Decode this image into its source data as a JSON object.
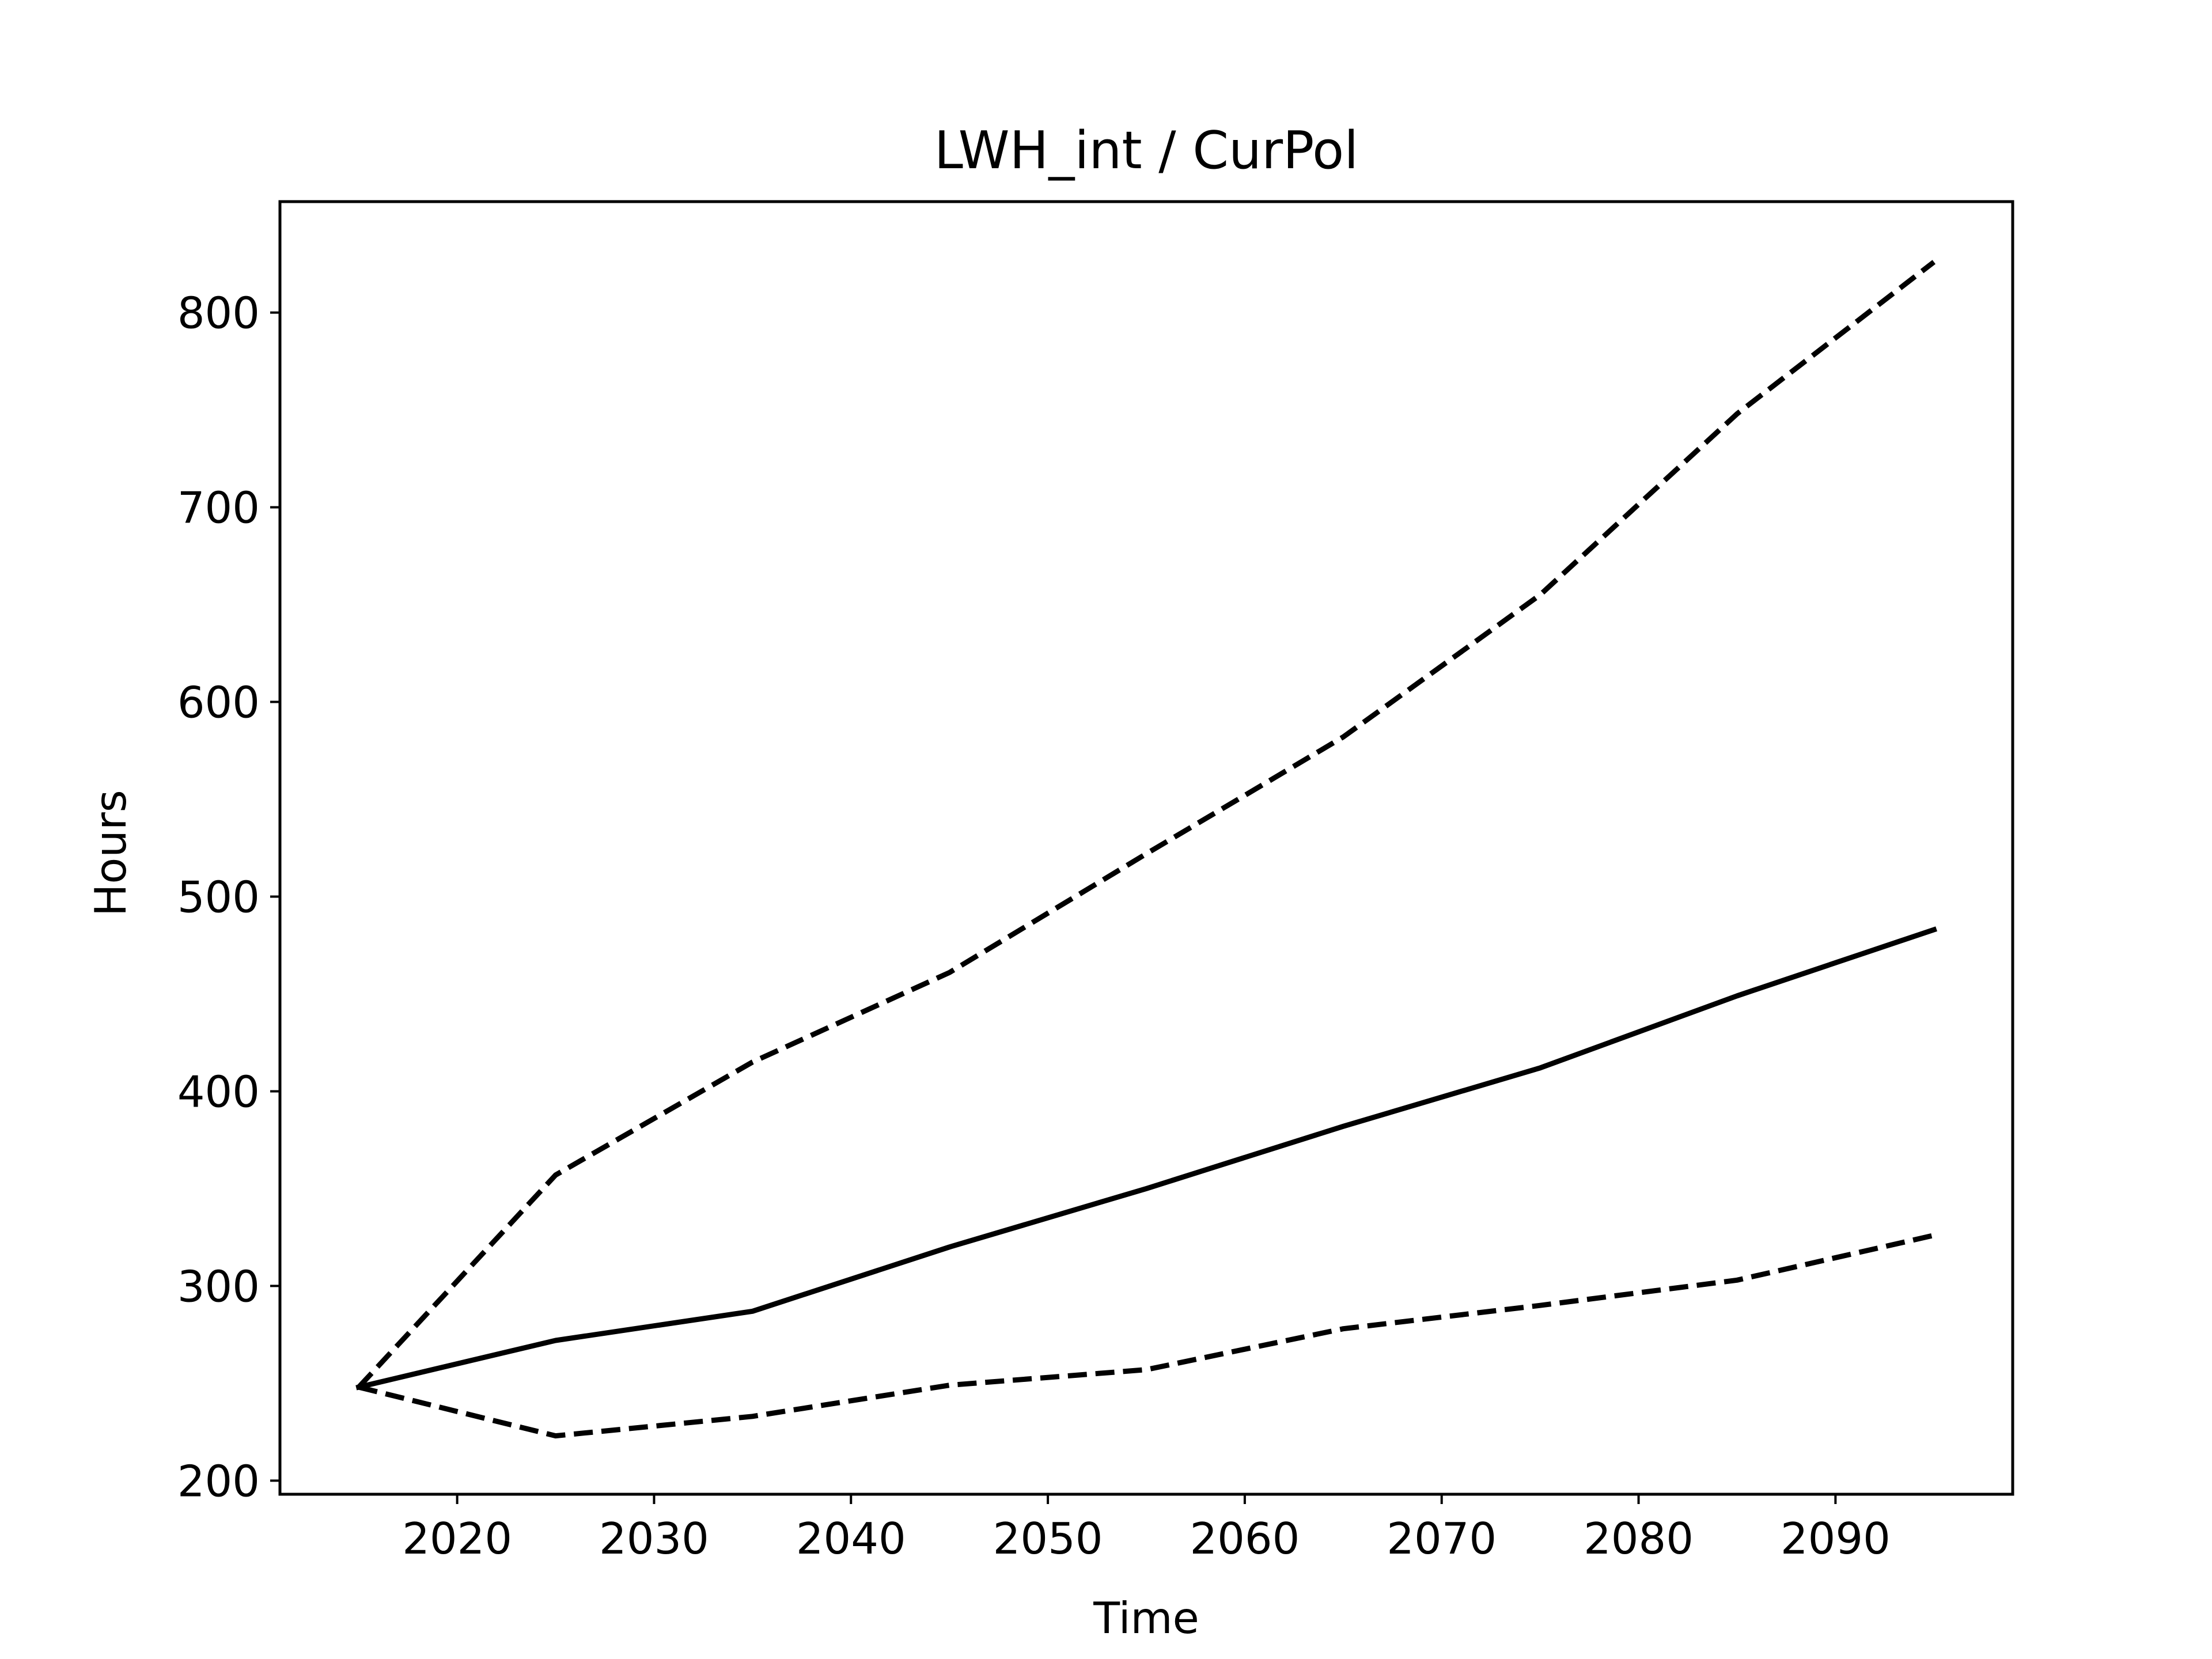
{
  "chart_data": {
    "type": "line",
    "title": "LWH_int / CurPol",
    "xlabel": "Time",
    "ylabel": "Hours",
    "xlim": [
      2011,
      2099
    ],
    "ylim": [
      193,
      857
    ],
    "xticks": [
      2020,
      2030,
      2040,
      2050,
      2060,
      2070,
      2080,
      2090
    ],
    "yticks": [
      200,
      300,
      400,
      500,
      600,
      700,
      800
    ],
    "grid": false,
    "x": [
      2015,
      2025,
      2035,
      2045,
      2055,
      2065,
      2075,
      2085,
      2095
    ],
    "series": [
      {
        "style": "solid",
        "color": "#000000",
        "values": [
          248,
          272,
          287,
          320,
          350,
          382,
          412,
          449,
          483
        ]
      },
      {
        "style": "dashed",
        "color": "#000000",
        "values": [
          248,
          357,
          415,
          461,
          522,
          582,
          655,
          748,
          826
        ]
      },
      {
        "style": "dashed",
        "color": "#000000",
        "values": [
          248,
          223,
          233,
          249,
          257,
          278,
          290,
          303,
          326
        ]
      }
    ]
  }
}
